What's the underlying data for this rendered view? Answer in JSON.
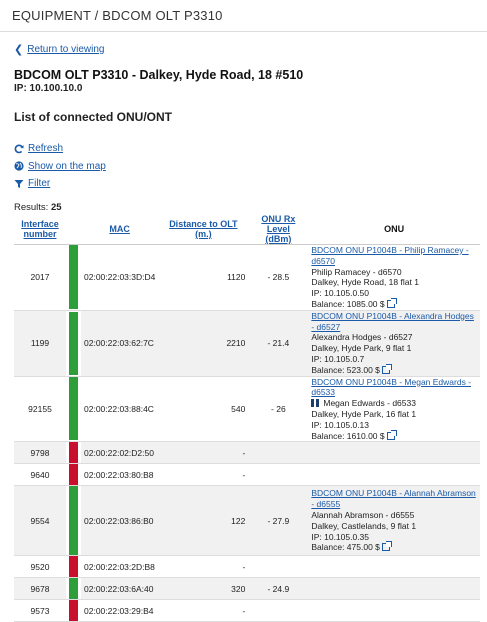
{
  "breadcrumb": "EQUIPMENT / BDCOM OLT P3310",
  "back_link": "Return to viewing",
  "device": {
    "title": "BDCOM OLT P3310 - Dalkey, Hyde Road, 18 #510",
    "ip": "IP: 10.100.10.0"
  },
  "section_title": "List of connected ONU/ONT",
  "actions": {
    "refresh": "Refresh",
    "map": "Show on the map",
    "filter": "Filter"
  },
  "results": {
    "label": "Results:",
    "count": "25"
  },
  "colors": {
    "online": "#2e9e3a",
    "offline": "#c8102e",
    "link": "#1b5aa8"
  },
  "table": {
    "headers": {
      "iface_line1": "Interface",
      "iface_line2": "number",
      "mac": "MAC",
      "distance": "Distance to OLT (m.)",
      "rx_line1": "ONU Rx Level",
      "rx_line2": "(dBm)",
      "onu": "ONU"
    },
    "rows": [
      {
        "iface": "2017",
        "status": "online",
        "mac": "02:00:22:03:3D:D4",
        "distance": "1120",
        "rx": "- 28.5",
        "onu_link": "BDCOM ONU P1004B - Philip Ramacey - d6570",
        "onu_name": "Philip Ramacey - d6570",
        "onu_addr": "Dalkey, Hyde Road, 18 flat 1",
        "onu_ip": "IP: 10.105.0.50",
        "onu_balance": "Balance: 1085.00 $"
      },
      {
        "iface": "1199",
        "status": "online",
        "mac": "02:00:22:03:62:7C",
        "distance": "2210",
        "rx": "- 21.4",
        "onu_link": "BDCOM ONU P1004B - Alexandra Hodges - d6527",
        "onu_name": "Alexandra Hodges - d6527",
        "onu_addr": "Dalkey, Hyde Park, 9 flat 1",
        "onu_ip": "IP: 10.105.0.7",
        "onu_balance": "Balance: 523.00 $"
      },
      {
        "iface": "92155",
        "status": "online",
        "mac": "02:00:22:03:88:4C",
        "distance": "540",
        "rx": "- 26",
        "onu_link": "BDCOM ONU P1004B - Megan Edwards - d6533",
        "onu_name": "Megan Edwards - d6533",
        "onu_addr": "Dalkey, Hyde Park, 16 flat 1",
        "onu_ip": "IP: 10.105.0.13",
        "onu_balance": "Balance: 1610.00 $"
      },
      {
        "iface": "9798",
        "status": "offline",
        "mac": "02:00:22:02:D2:50",
        "distance": "-",
        "rx": ""
      },
      {
        "iface": "9640",
        "status": "offline",
        "mac": "02:00:22:03:80:B8",
        "distance": "-",
        "rx": ""
      },
      {
        "iface": "9554",
        "status": "online",
        "mac": "02:00:22:03:86:B0",
        "distance": "122",
        "rx": "- 27.9",
        "onu_link": "BDCOM ONU P1004B - Alannah Abramson - d6555",
        "onu_name": "Alannah Abramson - d6555",
        "onu_addr": "Dalkey, Castlelands, 9 flat 1",
        "onu_ip": "IP: 10.105.0.35",
        "onu_balance": "Balance: 475.00 $"
      },
      {
        "iface": "9520",
        "status": "offline",
        "mac": "02:00:22:03:2D:B8",
        "distance": "-",
        "rx": ""
      },
      {
        "iface": "9678",
        "status": "online",
        "mac": "02:00:22:03:6A:40",
        "distance": "320",
        "rx": "- 24.9"
      },
      {
        "iface": "9573",
        "status": "offline",
        "mac": "02:00:22:03:29:B4",
        "distance": "-",
        "rx": ""
      }
    ]
  }
}
